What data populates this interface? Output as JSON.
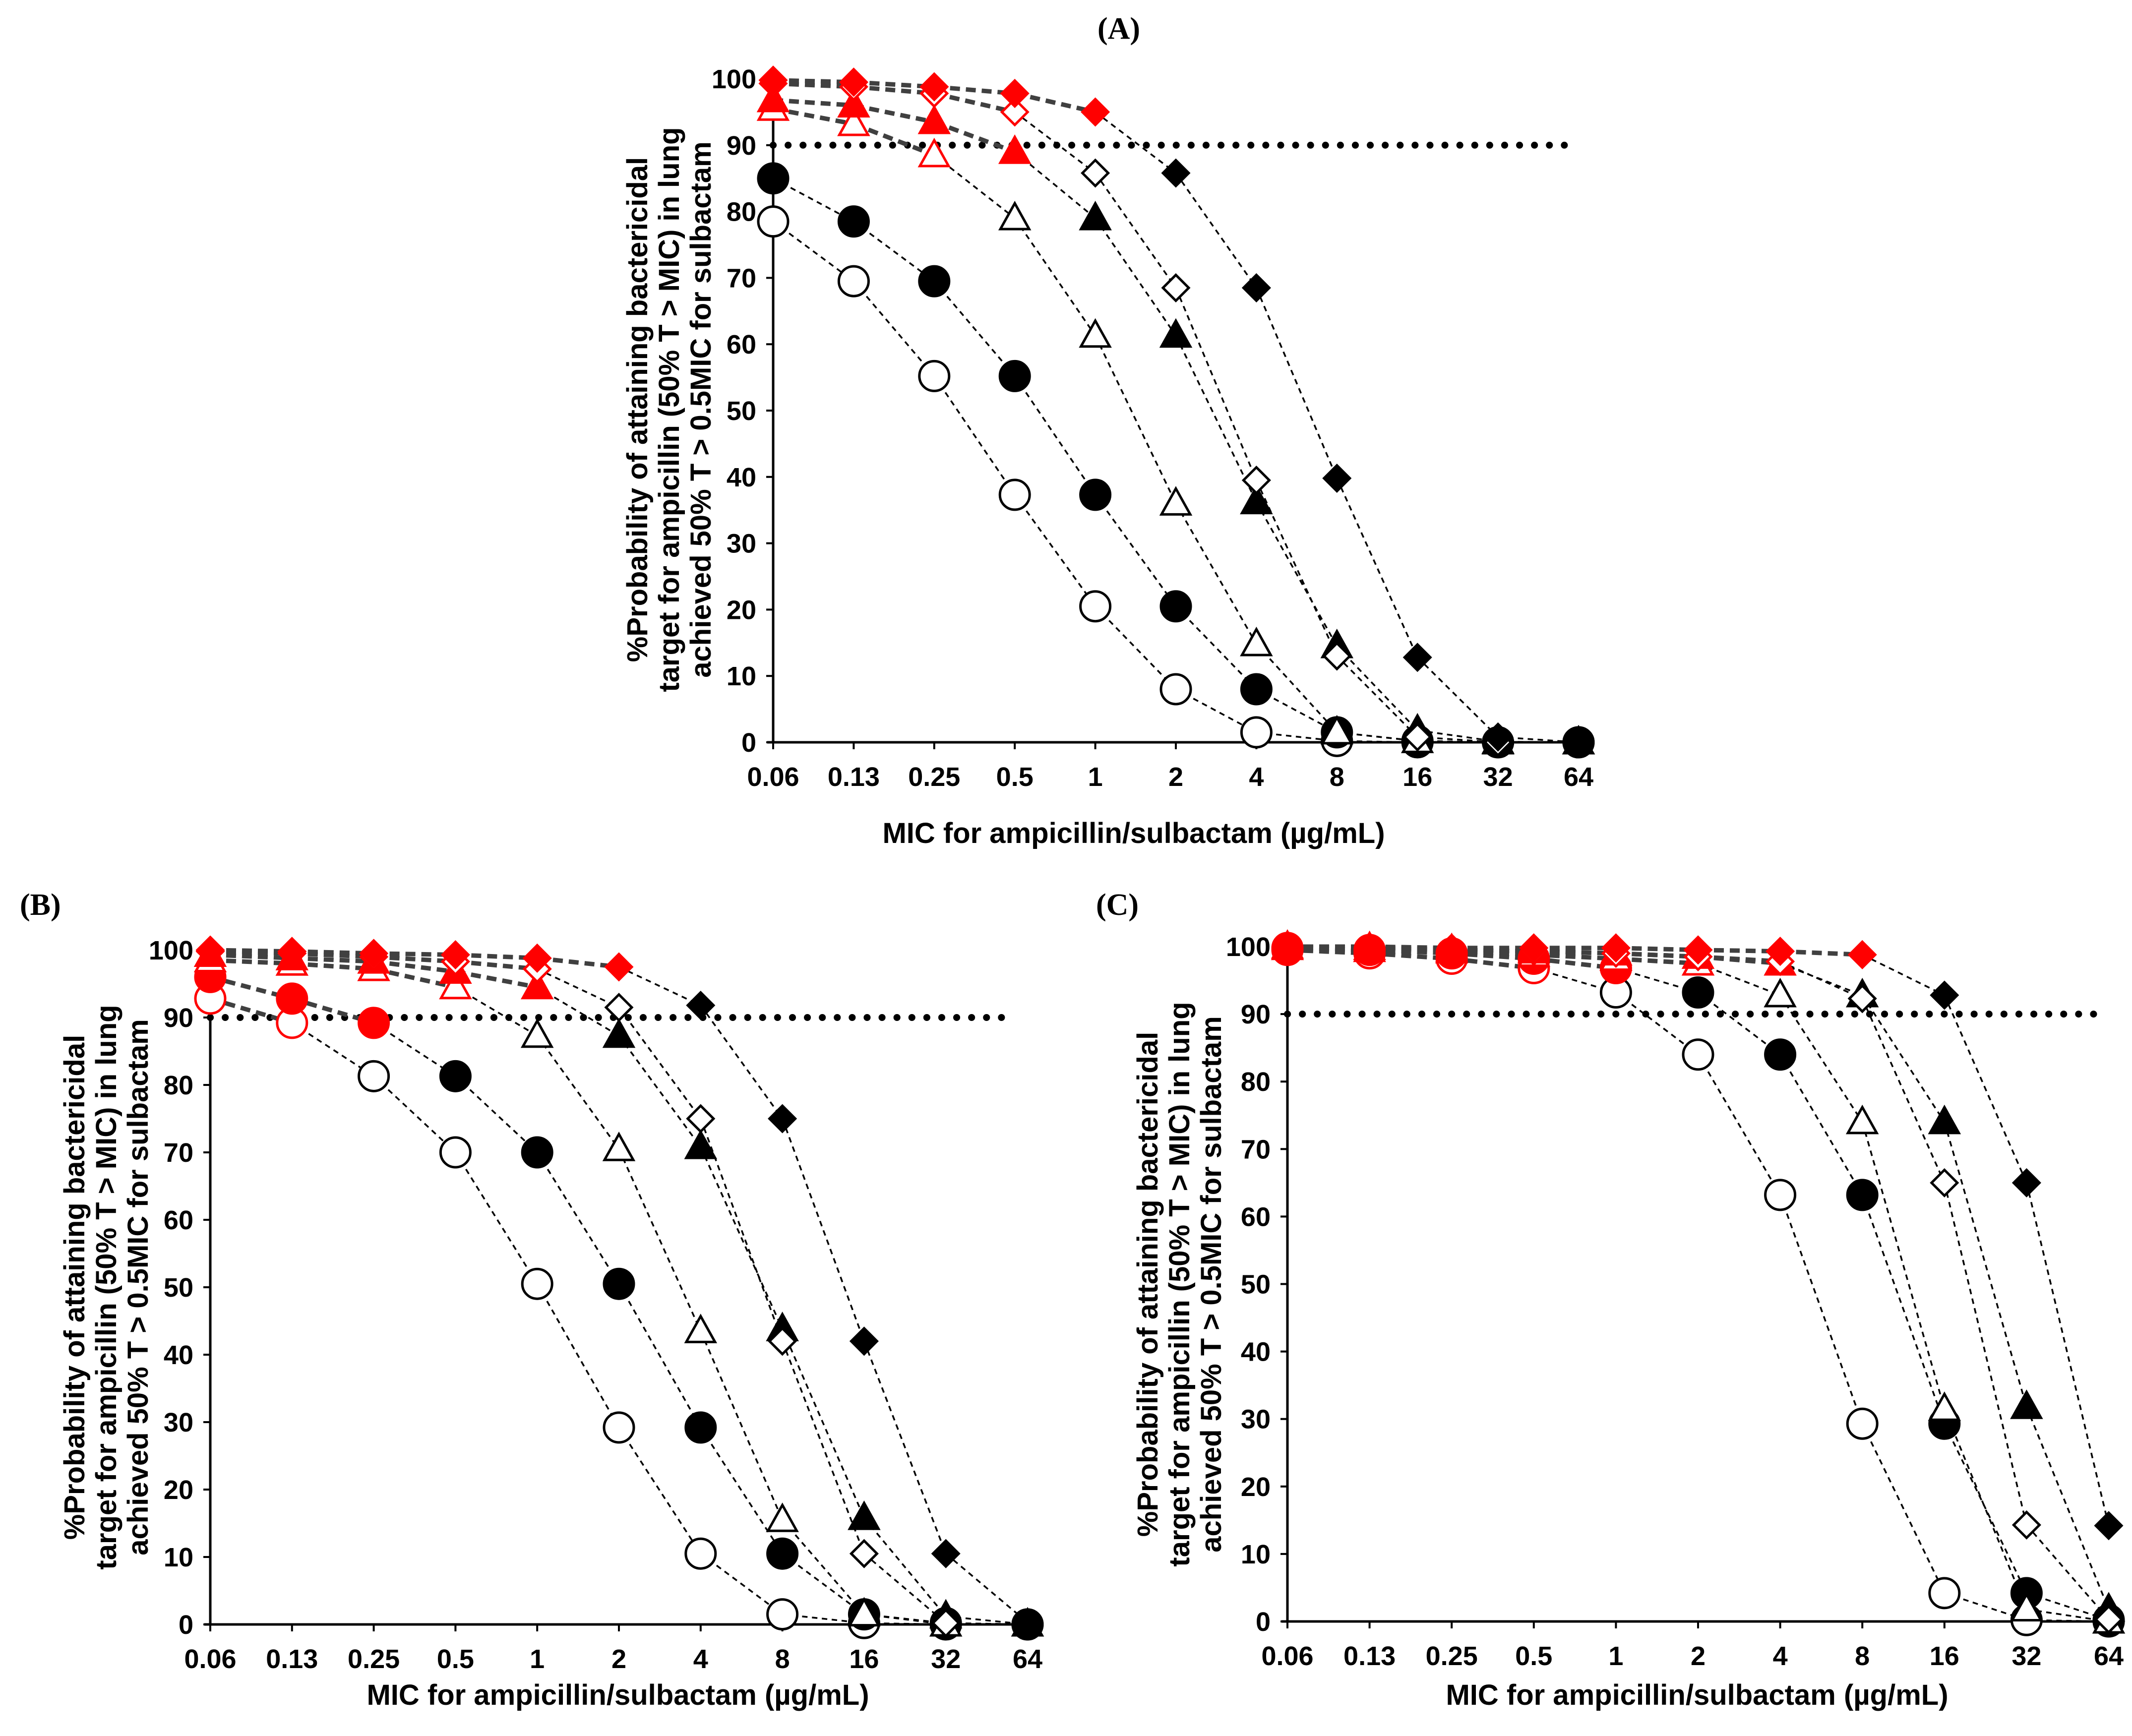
{
  "chart_data": [
    {
      "type": "line",
      "panel_label": "(A)",
      "categories": [
        "0.06",
        "0.13",
        "0.25",
        "0.5",
        "1",
        "2",
        "4",
        "8",
        "16",
        "32",
        "64"
      ],
      "xlabel": "MIC for ampicillin/sulbactam (µg/mL)",
      "ylabel_lines": [
        "%Probability of attaining bactericidal",
        "target for ampicillin (50% T > MIC) in lung",
        "achieved 50% T > 0.5MIC for sulbactam"
      ],
      "ylim": [
        0,
        100
      ],
      "yticks": [
        0,
        10,
        20,
        30,
        40,
        50,
        60,
        70,
        80,
        90,
        100
      ],
      "target_line": 90,
      "series": [
        {
          "marker": "circle-open",
          "values": [
            78.5,
            69.5,
            55.2,
            37.3,
            20.5,
            8.0,
            1.5,
            0.2,
            0,
            0,
            0
          ],
          "red_points": []
        },
        {
          "marker": "circle-filled",
          "values": [
            85.0,
            78.5,
            69.5,
            55.2,
            37.3,
            20.5,
            8.0,
            1.5,
            0.2,
            0,
            0
          ],
          "red_points": []
        },
        {
          "marker": "triangle-open",
          "values": [
            95.5,
            93.2,
            88.5,
            79.0,
            61.3,
            36.0,
            14.8,
            1.5,
            0.2,
            0,
            0
          ],
          "red_points": [
            0,
            1,
            2
          ]
        },
        {
          "marker": "triangle-filled",
          "values": [
            96.8,
            96.0,
            93.5,
            89.0,
            79.0,
            61.3,
            36.2,
            14.5,
            1.8,
            0.1,
            0
          ],
          "red_points": [
            0,
            1,
            2,
            3
          ]
        },
        {
          "marker": "diamond-open",
          "values": [
            99.3,
            98.8,
            97.8,
            95.0,
            85.8,
            68.5,
            39.5,
            13.0,
            0.8,
            0,
            0
          ],
          "red_points": [
            0,
            1,
            2,
            3
          ]
        },
        {
          "marker": "diamond-filled",
          "values": [
            99.8,
            99.5,
            98.8,
            97.8,
            95.0,
            85.8,
            68.5,
            39.8,
            12.8,
            0.8,
            0
          ],
          "red_points": [
            0,
            1,
            2,
            3,
            4
          ]
        }
      ]
    },
    {
      "type": "line",
      "panel_label": "(B)",
      "categories": [
        "0.06",
        "0.13",
        "0.25",
        "0.5",
        "1",
        "2",
        "4",
        "8",
        "16",
        "32",
        "64"
      ],
      "xlabel": "MIC for ampicillin/sulbactam (µg/mL)",
      "ylabel_lines": [
        "%Probability of attaining bactericidal",
        "target for ampicillin (50% T > MIC) in lung",
        "achieved 50% T > 0.5MIC for sulbactam"
      ],
      "ylim": [
        0,
        100
      ],
      "yticks": [
        0,
        10,
        20,
        30,
        40,
        50,
        60,
        70,
        80,
        90,
        100
      ],
      "target_line": 90,
      "series": [
        {
          "marker": "circle-open",
          "values": [
            92.8,
            89.2,
            81.3,
            70.0,
            50.5,
            29.2,
            10.5,
            1.5,
            0.2,
            0,
            0
          ],
          "red_points": [
            0,
            1
          ]
        },
        {
          "marker": "circle-filled",
          "values": [
            96.0,
            92.8,
            89.2,
            81.3,
            70.0,
            50.5,
            29.2,
            10.5,
            1.5,
            0.2,
            0
          ],
          "red_points": [
            0,
            1,
            2
          ]
        },
        {
          "marker": "triangle-open",
          "values": [
            98.5,
            98.0,
            97.2,
            94.5,
            87.3,
            70.5,
            43.5,
            15.5,
            1.5,
            0,
            0
          ],
          "red_points": [
            0,
            1,
            2,
            3
          ]
        },
        {
          "marker": "triangle-filled",
          "values": [
            99.3,
            98.8,
            98.3,
            96.8,
            94.5,
            87.3,
            70.8,
            43.8,
            15.8,
            1.2,
            0
          ],
          "red_points": [
            0,
            1,
            2,
            3,
            4
          ]
        },
        {
          "marker": "diamond-open",
          "values": [
            99.8,
            99.5,
            99.0,
            98.3,
            97.2,
            91.5,
            75.0,
            42.0,
            10.5,
            0.2,
            0
          ],
          "red_points": [
            0,
            1,
            2,
            3,
            4
          ]
        },
        {
          "marker": "diamond-filled",
          "values": [
            100,
            99.8,
            99.5,
            99.3,
            98.8,
            97.5,
            91.8,
            75.0,
            42.0,
            10.5,
            0.3
          ],
          "red_points": [
            0,
            1,
            2,
            3,
            4,
            5
          ]
        }
      ]
    },
    {
      "type": "line",
      "panel_label": "(C)",
      "categories": [
        "0.06",
        "0.13",
        "0.25",
        "0.5",
        "1",
        "2",
        "4",
        "8",
        "16",
        "32",
        "64"
      ],
      "xlabel": "MIC for ampicillin/sulbactam (µg/mL)",
      "ylabel_lines": [
        "%Probability of attaining bactericidal",
        "target for ampicillin (50% T > MIC) in lung",
        "achieved 50% T > 0.5MIC for sulbactam"
      ],
      "ylim": [
        0,
        100
      ],
      "yticks": [
        0,
        10,
        20,
        30,
        40,
        50,
        60,
        70,
        80,
        90,
        100
      ],
      "target_line": 90,
      "series": [
        {
          "marker": "circle-open",
          "values": [
            99.5,
            99.0,
            98.2,
            96.8,
            93.2,
            84.0,
            63.2,
            29.3,
            4.2,
            0.2,
            0
          ],
          "red_points": [
            0,
            1,
            2,
            3
          ]
        },
        {
          "marker": "circle-filled",
          "values": [
            99.8,
            99.5,
            99.0,
            98.2,
            96.8,
            93.2,
            84.0,
            63.2,
            29.3,
            4.2,
            0.2
          ],
          "red_points": [
            0,
            1,
            2,
            3,
            4
          ]
        },
        {
          "marker": "triangle-open",
          "values": [
            99.8,
            99.5,
            99.3,
            98.8,
            98.2,
            97.5,
            92.8,
            74.0,
            31.5,
            1.8,
            0
          ],
          "red_points": [
            0,
            1,
            2,
            3,
            4,
            5
          ]
        },
        {
          "marker": "triangle-filled",
          "values": [
            100,
            99.8,
            99.5,
            99.3,
            99.0,
            98.5,
            97.5,
            92.8,
            74.0,
            31.8,
            1.8
          ],
          "red_points": [
            0,
            1,
            2,
            3,
            4,
            5,
            6
          ]
        },
        {
          "marker": "diamond-open",
          "values": [
            100,
            99.8,
            99.5,
            99.3,
            99.0,
            98.5,
            97.8,
            92.3,
            65.0,
            14.3,
            0.3
          ],
          "red_points": [
            0,
            1,
            2,
            3,
            4,
            5,
            6
          ]
        },
        {
          "marker": "diamond-filled",
          "values": [
            100,
            100,
            99.8,
            99.8,
            99.8,
            99.5,
            99.3,
            98.8,
            92.8,
            65.0,
            14.2
          ],
          "red_points": [
            0,
            1,
            2,
            3,
            4,
            5,
            6,
            7
          ]
        }
      ]
    }
  ]
}
